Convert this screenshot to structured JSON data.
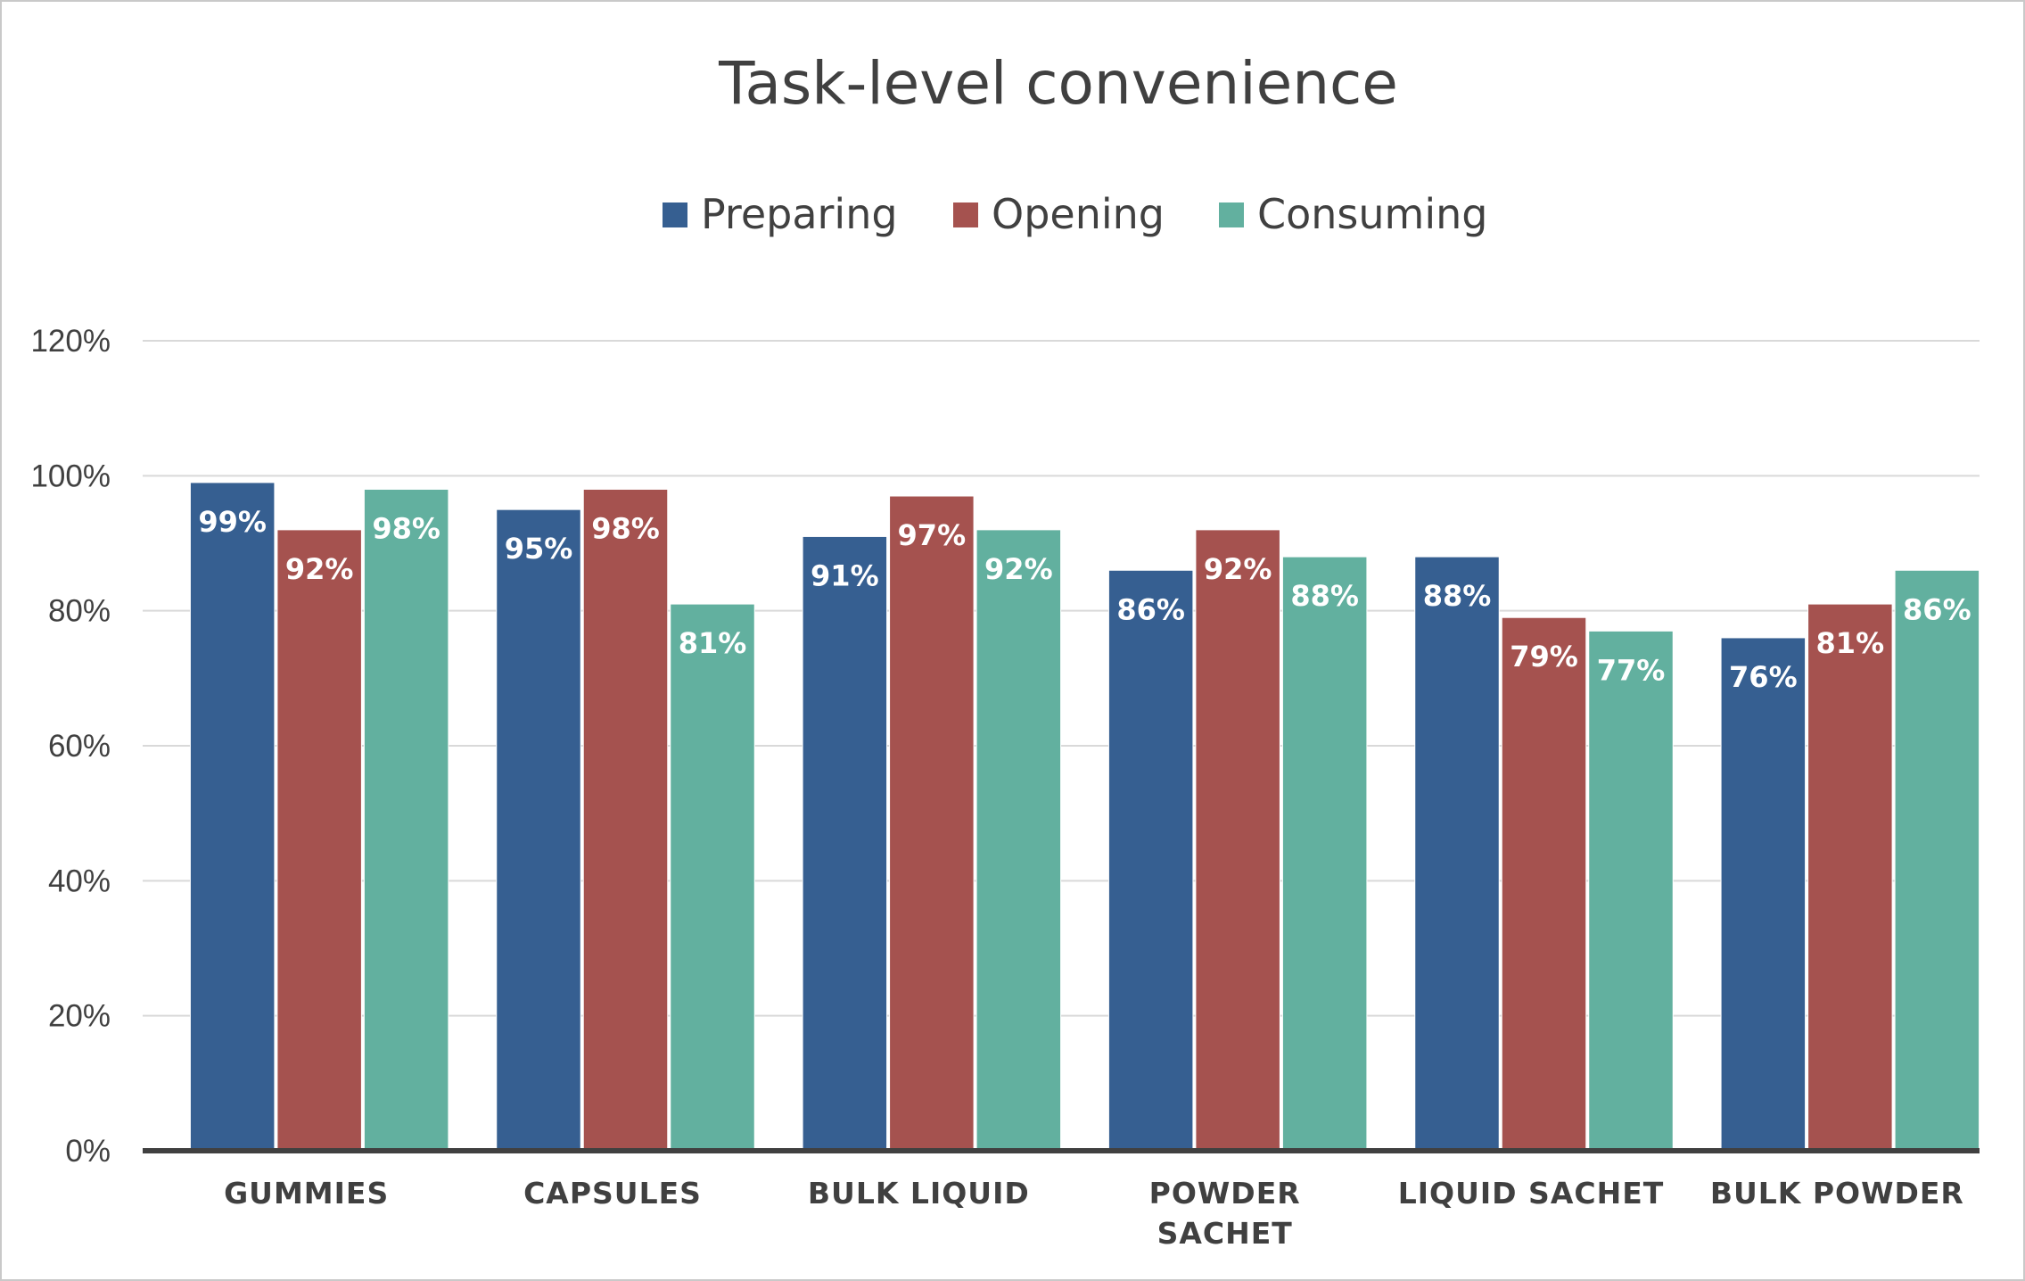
{
  "chart_data": {
    "type": "bar",
    "title": "Task-level convenience",
    "categories": [
      [
        "GUMMIES"
      ],
      [
        "CAPSULES"
      ],
      [
        "BULK LIQUID"
      ],
      [
        "POWDER",
        "SACHET"
      ],
      [
        "LIQUID SACHET"
      ],
      [
        "BULK POWDER"
      ]
    ],
    "series": [
      {
        "name": "Preparing",
        "color": "#365F91",
        "values": [
          99,
          95,
          91,
          86,
          88,
          76
        ],
        "labels": [
          "99%",
          "95%",
          "91%",
          "86%",
          "88%",
          "76%"
        ]
      },
      {
        "name": "Opening",
        "color": "#A5524F",
        "values": [
          92,
          98,
          97,
          92,
          79,
          81
        ],
        "labels": [
          "92%",
          "98%",
          "97%",
          "92%",
          "79%",
          "81%"
        ]
      },
      {
        "name": "Consuming",
        "color": "#62B09F",
        "values": [
          98,
          81,
          92,
          88,
          77,
          86
        ],
        "labels": [
          "98%",
          "81%",
          "92%",
          "88%",
          "77%",
          "86%"
        ]
      }
    ],
    "ylim": [
      0,
      120
    ],
    "yticks": [
      0,
      20,
      40,
      60,
      80,
      100,
      120
    ],
    "ytick_labels": [
      "0%",
      "20%",
      "40%",
      "60%",
      "80%",
      "100%",
      "120%"
    ],
    "grid": true,
    "legend": "top-center",
    "data_labels": "inside-end"
  }
}
